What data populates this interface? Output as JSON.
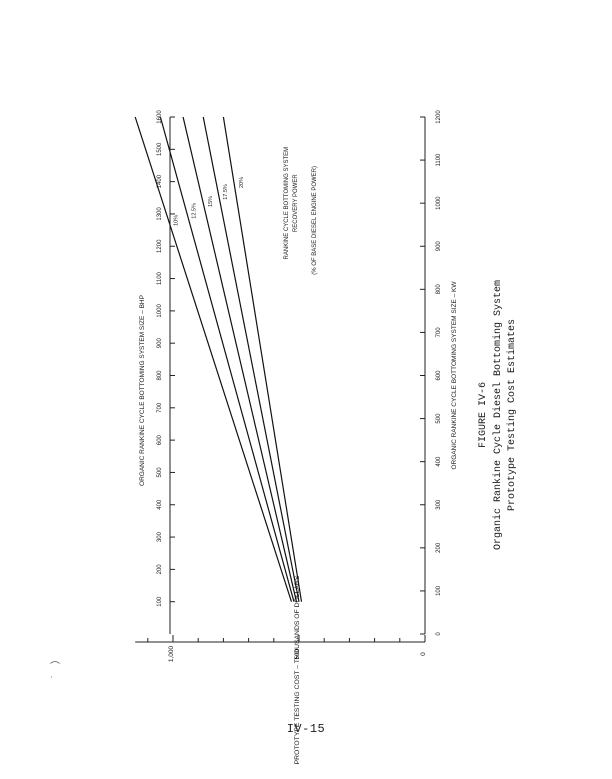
{
  "page_number": "IV-15",
  "figure_caption": {
    "line1": "FIGURE IV-6",
    "line2": "Organic Rankine Cycle Diesel Bottoming System",
    "line3": "Prototype Testing Cost Estimates"
  },
  "chart_data": {
    "type": "line",
    "orientation": "rotated-90-ccw",
    "title": "",
    "xlabel": "ORGANIC RANKINE CYCLE BOTTOMING SYSTEM SIZE – KW",
    "x2label": "ORGANIC RANKINE CYCLE BOTTOMING SYSTEM SIZE – BHP",
    "ylabel": "PROTOTYPE TESTING COST – THOUSANDS OF DOLLARS",
    "xlim": [
      0,
      1200
    ],
    "x2lim": [
      0,
      1600
    ],
    "ylim": [
      0,
      1150
    ],
    "x_ticks": [
      "0",
      "100",
      "200",
      "300",
      "400",
      "500",
      "600",
      "700",
      "800",
      "900",
      "1000",
      "1100",
      "1200"
    ],
    "x_tick_values": [
      0,
      100,
      200,
      300,
      400,
      500,
      600,
      700,
      800,
      900,
      1000,
      1100,
      1200
    ],
    "x2_ticks": [
      "100",
      "200",
      "300",
      "400",
      "500",
      "600",
      "700",
      "800",
      "900",
      "1000",
      "1100",
      "1200",
      "1300",
      "1400",
      "1500",
      "1600"
    ],
    "x2_tick_values": [
      100,
      200,
      300,
      400,
      500,
      600,
      700,
      800,
      900,
      1000,
      1100,
      1200,
      1300,
      1400,
      1500,
      1600
    ],
    "y_ticks": [
      "0",
      "500",
      "1,000"
    ],
    "y_tick_values": [
      0,
      500,
      1000
    ],
    "y_minor_step": 100,
    "series_legend": {
      "line1": "RANKINE CYCLE BOTTOMING SYSTEM",
      "line2": "RECOVERY POWER",
      "line3": "(% OF BASE DIESEL ENGINE POWER)"
    },
    "series": [
      {
        "name": "10%",
        "x": [
          75,
          1200
        ],
        "y": [
          530,
          1150
        ]
      },
      {
        "name": "12.5%",
        "x": [
          75,
          1200
        ],
        "y": [
          520,
          1050
        ]
      },
      {
        "name": "15%",
        "x": [
          75,
          1200
        ],
        "y": [
          510,
          960
        ]
      },
      {
        "name": "17.5%",
        "x": [
          75,
          1200
        ],
        "y": [
          500,
          880
        ]
      },
      {
        "name": "20%",
        "x": [
          75,
          1200
        ],
        "y": [
          490,
          800
        ]
      }
    ],
    "grid": false,
    "legend": "inline-labels"
  }
}
